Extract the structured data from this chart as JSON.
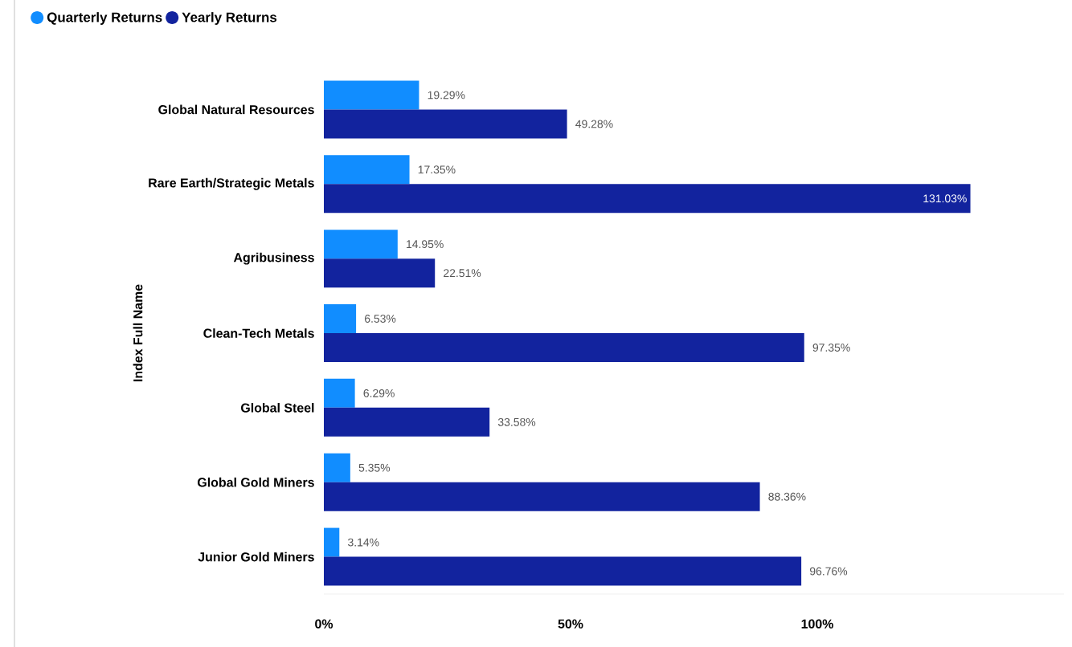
{
  "chart_data": {
    "type": "bar",
    "orientation": "horizontal",
    "ylabel": "Index Full Name",
    "categories": [
      "Global Natural Resources",
      "Rare Earth/Strategic Metals",
      "Agribusiness",
      "Clean-Tech Metals",
      "Global Steel",
      "Global Gold Miners",
      "Junior Gold Miners"
    ],
    "series": [
      {
        "name": "Quarterly Returns",
        "color": "#118dff",
        "values": [
          19.29,
          17.35,
          14.95,
          6.53,
          6.29,
          5.35,
          3.14
        ],
        "value_labels": [
          "19.29%",
          "17.35%",
          "14.95%",
          "6.53%",
          "6.29%",
          "5.35%",
          "3.14%"
        ]
      },
      {
        "name": "Yearly Returns",
        "color": "#12239e",
        "values": [
          49.28,
          131.03,
          22.51,
          97.35,
          33.58,
          88.36,
          96.76
        ],
        "value_labels": [
          "49.28%",
          "131.03%",
          "22.51%",
          "97.35%",
          "33.58%",
          "88.36%",
          "96.76%"
        ]
      }
    ],
    "xlim": [
      0,
      150
    ],
    "xticks": [
      {
        "value": 0,
        "label": "0%"
      },
      {
        "value": 50,
        "label": "50%"
      },
      {
        "value": 100,
        "label": "100%"
      }
    ],
    "legend": "top left"
  }
}
